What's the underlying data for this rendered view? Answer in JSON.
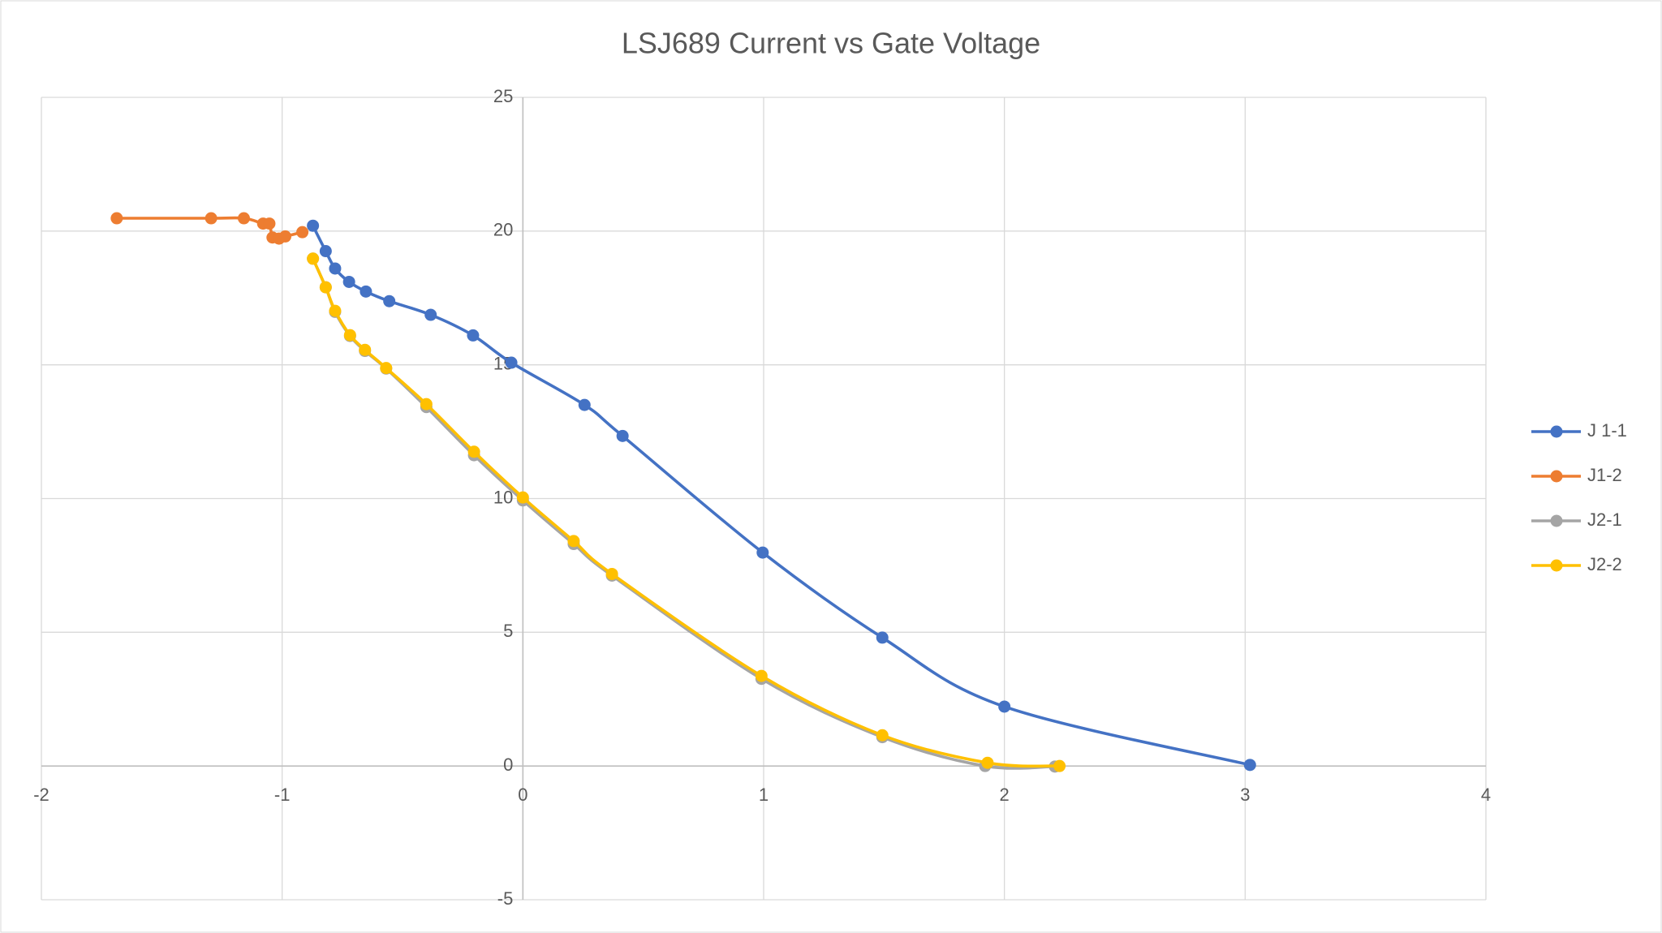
{
  "chart_data": {
    "type": "scatter",
    "title": "LSJ689 Current vs Gate Voltage",
    "xlim": [
      -2,
      4
    ],
    "xticks": [
      -2,
      -1,
      0,
      1,
      2,
      3,
      4
    ],
    "ylim": [
      -5,
      25
    ],
    "yticks": [
      -5,
      0,
      5,
      10,
      15,
      20,
      25
    ],
    "grid": true,
    "legend": "right",
    "smooth": true,
    "series": [
      {
        "name": "J 1-1",
        "color": "#4472c4",
        "x": [
          -0.872,
          -0.819,
          -0.78,
          -0.722,
          -0.652,
          -0.555,
          -0.383,
          -0.207,
          -0.048,
          0.256,
          0.414,
          0.996,
          1.493,
          2.0,
          3.02
        ],
        "values": [
          20.2,
          19.25,
          18.6,
          18.1,
          17.74,
          17.38,
          16.87,
          16.1,
          15.08,
          13.5,
          12.34,
          7.98,
          4.8,
          2.22,
          0.04
        ]
      },
      {
        "name": "J1-2",
        "color": "#ed7d31",
        "x": [
          -1.687,
          -1.295,
          -1.159,
          -1.079,
          -1.053,
          -1.04,
          -1.013,
          -0.987,
          -0.916
        ],
        "values": [
          20.48,
          20.48,
          20.48,
          20.28,
          20.28,
          19.76,
          19.72,
          19.8,
          19.96
        ]
      },
      {
        "name": "J2-1",
        "color": "#a5a5a5",
        "x": [
          -0.872,
          -0.819,
          -0.78,
          -0.718,
          -0.656,
          -0.568,
          -0.401,
          -0.203,
          0,
          0.211,
          0.37,
          0.991,
          1.493,
          1.92,
          2.21
        ],
        "values": [
          18.97,
          17.9,
          16.98,
          16.08,
          15.52,
          14.86,
          13.42,
          11.62,
          9.93,
          8.3,
          7.12,
          3.26,
          1.08,
          0.0,
          -0.02
        ]
      },
      {
        "name": "J2-2",
        "color": "#ffc000",
        "x": [
          -0.872,
          -0.819,
          -0.78,
          -0.718,
          -0.656,
          -0.568,
          -0.401,
          -0.203,
          0,
          0.211,
          0.37,
          0.991,
          1.493,
          1.93,
          2.229
        ],
        "values": [
          18.97,
          17.9,
          17.02,
          16.11,
          15.56,
          14.88,
          13.53,
          11.75,
          10.04,
          8.41,
          7.18,
          3.37,
          1.15,
          0.12,
          0
        ]
      }
    ]
  }
}
